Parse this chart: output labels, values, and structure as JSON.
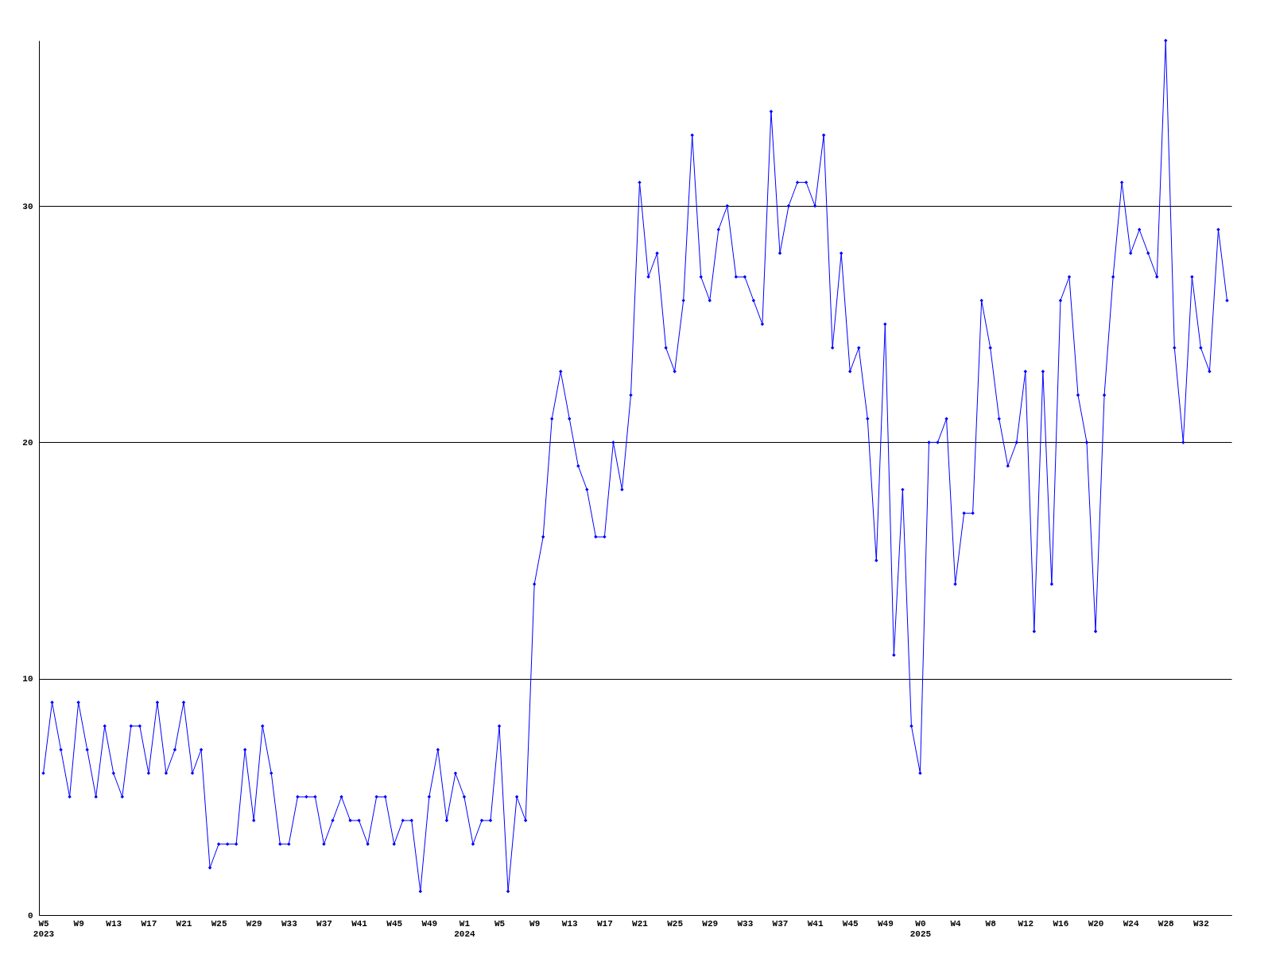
{
  "chart_data": {
    "type": "line",
    "categories": [
      "W5\n2023",
      null,
      null,
      null,
      "W9",
      null,
      null,
      null,
      "W13",
      null,
      null,
      null,
      "W17",
      null,
      null,
      null,
      "W21",
      null,
      null,
      null,
      "W25",
      null,
      null,
      null,
      "W29",
      null,
      null,
      null,
      "W33",
      null,
      null,
      null,
      "W37",
      null,
      null,
      null,
      "W41",
      null,
      null,
      null,
      "W45",
      null,
      null,
      null,
      "W49",
      null,
      null,
      null,
      "W1\n2024",
      null,
      null,
      null,
      "W5",
      null,
      null,
      null,
      "W9",
      null,
      null,
      null,
      "W13",
      null,
      null,
      null,
      "W17",
      null,
      null,
      null,
      "W21",
      null,
      null,
      null,
      "W25",
      null,
      null,
      null,
      "W29",
      null,
      null,
      null,
      "W33",
      null,
      null,
      null,
      "W37",
      null,
      null,
      null,
      "W41",
      null,
      null,
      null,
      "W45",
      null,
      null,
      null,
      "W49",
      null,
      null,
      null,
      "W0\n2025",
      null,
      null,
      null,
      "W4",
      null,
      null,
      null,
      "W8",
      null,
      null,
      null,
      "W12",
      null,
      null,
      null,
      "W16",
      null,
      null,
      null,
      "W20",
      null,
      null,
      null,
      "W24",
      null,
      null,
      null,
      "W28",
      null,
      null,
      null,
      "W32",
      null,
      null,
      null
    ],
    "series": [
      {
        "color": "#0000ff",
        "values": [
          6,
          9,
          7,
          5,
          9,
          7,
          5,
          8,
          6,
          5,
          8,
          8,
          6,
          9,
          6,
          7,
          9,
          6,
          7,
          2,
          3,
          3,
          3,
          7,
          4,
          8,
          6,
          3,
          3,
          5,
          5,
          5,
          3,
          4,
          5,
          4,
          4,
          3,
          5,
          5,
          3,
          4,
          4,
          1,
          5,
          7,
          4,
          6,
          5,
          3,
          4,
          4,
          8,
          1,
          5,
          4,
          14,
          16,
          21,
          23,
          21,
          19,
          18,
          16,
          16,
          20,
          18,
          22,
          31,
          27,
          28,
          24,
          23,
          26,
          33,
          27,
          26,
          29,
          30,
          27,
          27,
          26,
          25,
          34,
          28,
          30,
          31,
          31,
          30,
          33,
          24,
          28,
          23,
          24,
          21,
          15,
          25,
          11,
          18,
          8,
          6,
          20,
          20,
          21,
          14,
          17,
          17,
          26,
          24,
          21,
          19,
          20,
          23,
          12,
          23,
          14,
          26,
          27,
          22,
          20,
          12,
          22,
          27,
          31,
          28,
          29,
          28,
          27,
          37,
          24,
          20,
          27,
          24,
          23,
          29,
          26
        ]
      }
    ],
    "ylim": [
      0,
      37
    ],
    "yticks": [
      0,
      10,
      20,
      30
    ],
    "grid": "y",
    "marker": "diamond",
    "line_style": "solid"
  }
}
